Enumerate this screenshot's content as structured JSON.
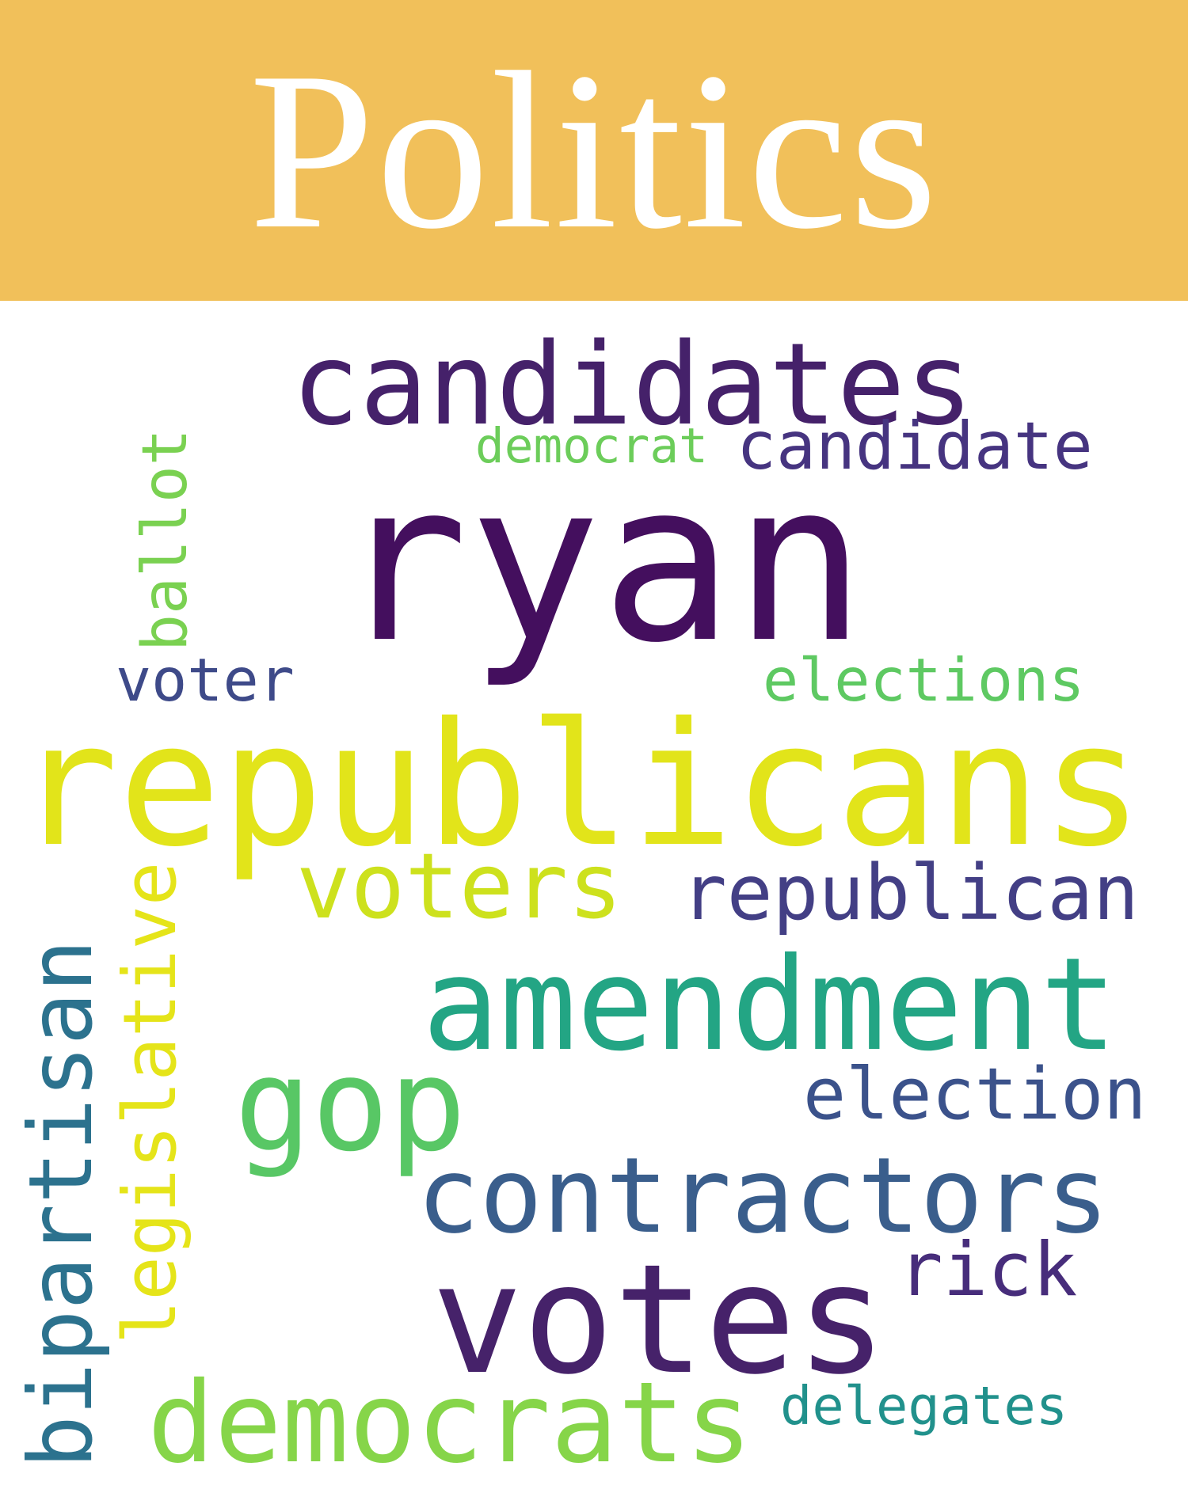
{
  "banner": {
    "title": "Politics",
    "background_color": "#f1c05a",
    "text_color": "#ffffff"
  },
  "words": {
    "ryan": {
      "text": "ryan",
      "color": "#440f5e"
    },
    "republicans": {
      "text": "republicans",
      "color": "#e2e41a"
    },
    "candidates": {
      "text": "candidates",
      "color": "#45216a"
    },
    "votes": {
      "text": "votes",
      "color": "#46226a"
    },
    "amendment": {
      "text": "amendment",
      "color": "#23a584"
    },
    "contractors": {
      "text": "contractors",
      "color": "#3a5e8c"
    },
    "democrats": {
      "text": "democrats",
      "color": "#86d549"
    },
    "voters": {
      "text": "voters",
      "color": "#cde11d"
    },
    "gop": {
      "text": "gop",
      "color": "#58c765"
    },
    "republican": {
      "text": "republican",
      "color": "#433f85"
    },
    "bipartisan": {
      "text": "bipartisan",
      "color": "#2c728e"
    },
    "legislative": {
      "text": "legislative",
      "color": "#e5e419"
    },
    "candidate": {
      "text": "candidate",
      "color": "#463480"
    },
    "election": {
      "text": "election",
      "color": "#3b528b"
    },
    "elections": {
      "text": "elections",
      "color": "#5ec962"
    },
    "ballot": {
      "text": "ballot",
      "color": "#7ad151"
    },
    "voter": {
      "text": "voter",
      "color": "#3e4a89"
    },
    "rick": {
      "text": "rick",
      "color": "#472d7b"
    },
    "democrat": {
      "text": "democrat",
      "color": "#6ccd5a"
    },
    "delegates": {
      "text": "delegates",
      "color": "#21918c"
    }
  }
}
